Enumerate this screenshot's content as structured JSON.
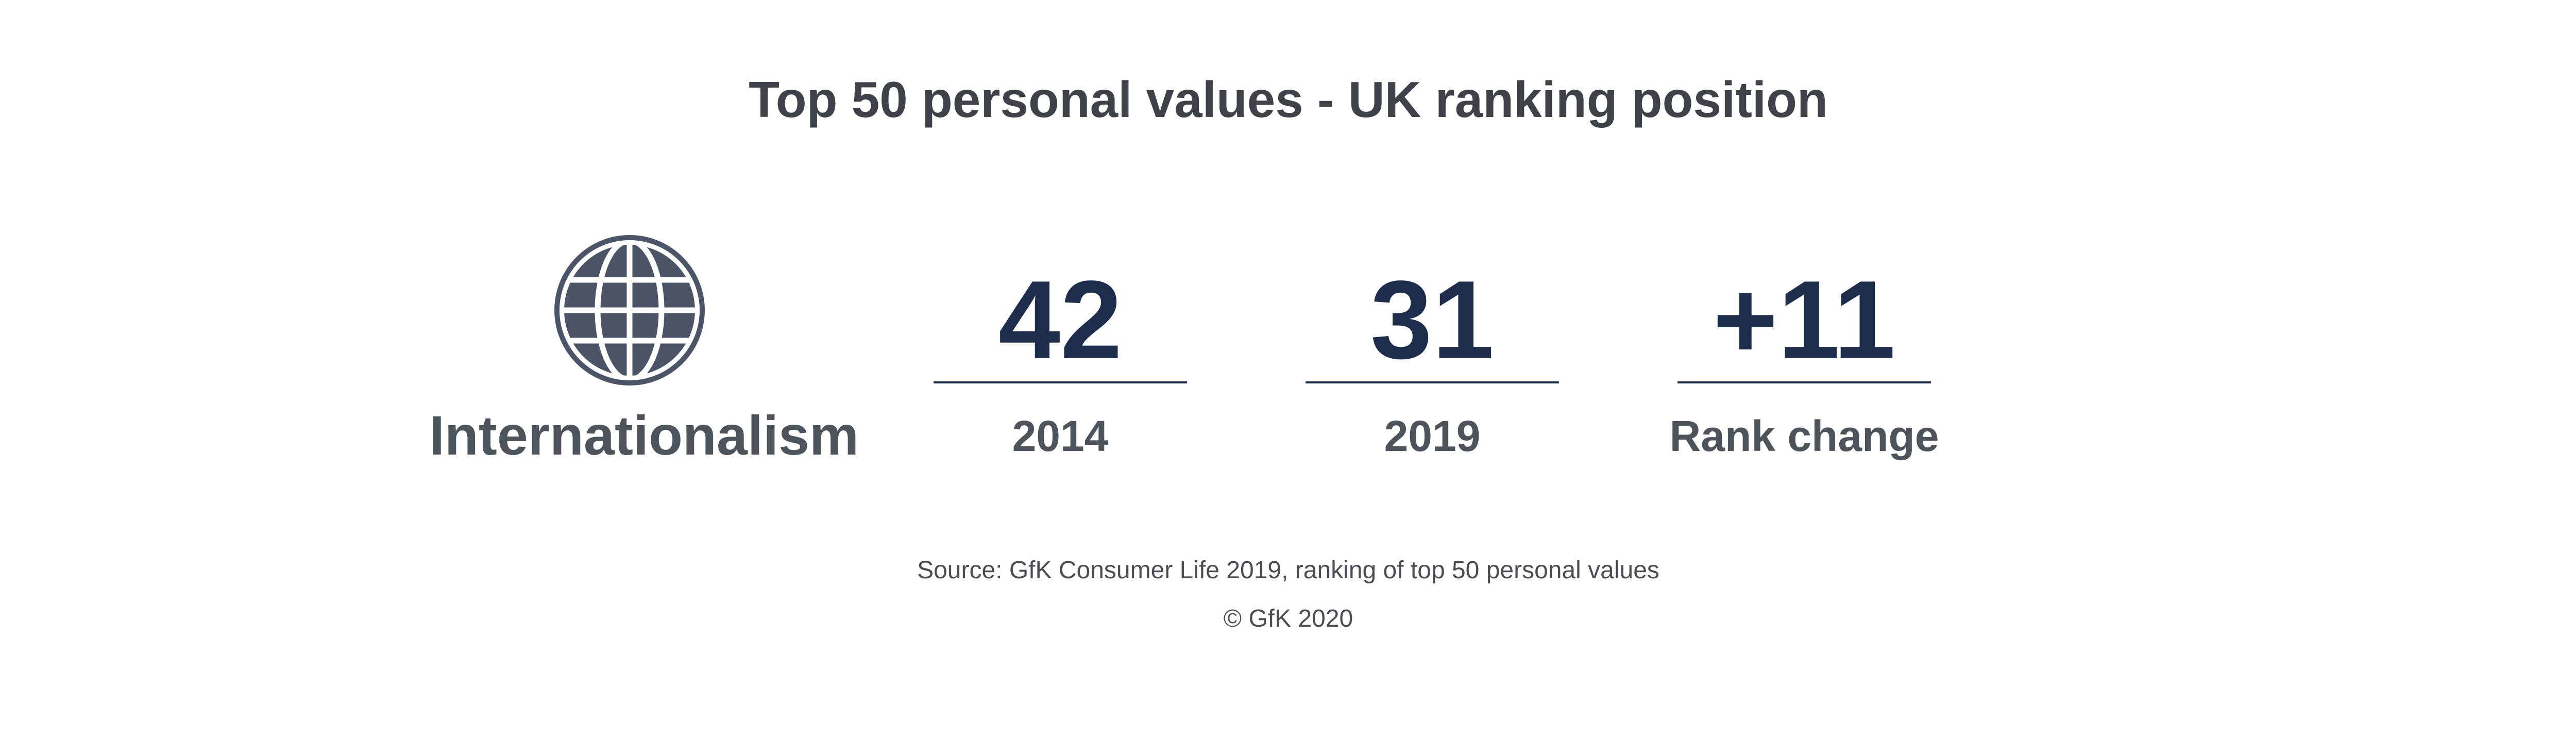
{
  "title": "Top 50 personal values - UK ranking position",
  "value": {
    "name": "Internationalism",
    "icon": "globe-icon"
  },
  "stats": [
    {
      "number": "42",
      "label": "2014"
    },
    {
      "number": "31",
      "label": "2019"
    },
    {
      "number": "+11",
      "label": "Rank change"
    }
  ],
  "footer": {
    "source": "Source: GfK Consumer Life 2019, ranking of top 50 personal values",
    "copyright": "© GfK 2020"
  },
  "colors": {
    "number": "#1f2d4d",
    "label": "#4e545b",
    "icon": "#4c5568"
  }
}
